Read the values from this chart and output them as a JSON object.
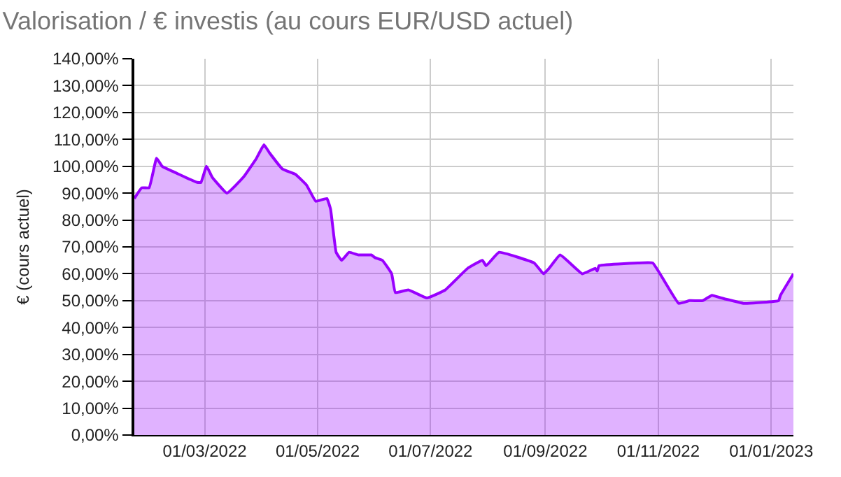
{
  "chart_data": {
    "type": "area",
    "title": "Valorisation / € investis (au cours EUR/USD actuel)",
    "ylabel": "€ (cours actuel)",
    "x": [
      "2022-01-22",
      "2022-01-26",
      "2022-01-30",
      "2022-02-03",
      "2022-02-06",
      "2022-02-12",
      "2022-02-25",
      "2022-02-27",
      "2022-03-02",
      "2022-03-05",
      "2022-03-13",
      "2022-03-22",
      "2022-03-29",
      "2022-04-02",
      "2022-04-05",
      "2022-04-12",
      "2022-04-19",
      "2022-04-25",
      "2022-04-30",
      "2022-05-06",
      "2022-05-08",
      "2022-05-11",
      "2022-05-14",
      "2022-05-18",
      "2022-05-23",
      "2022-05-30",
      "2022-06-01",
      "2022-06-05",
      "2022-06-10",
      "2022-06-12",
      "2022-06-19",
      "2022-06-29",
      "2022-07-09",
      "2022-07-15",
      "2022-07-21",
      "2022-07-29",
      "2022-07-31",
      "2022-08-07",
      "2022-08-26",
      "2022-08-31",
      "2022-09-03",
      "2022-09-09",
      "2022-09-21",
      "2022-09-28",
      "2022-09-29",
      "2022-09-30",
      "2022-10-21",
      "2022-10-29",
      "2022-11-12",
      "2022-11-18",
      "2022-11-25",
      "2022-11-30",
      "2022-12-05",
      "2022-12-17",
      "2022-12-19",
      "2023-01-05",
      "2023-01-06",
      "2023-01-13"
    ],
    "series": [
      {
        "color": "#9900ff",
        "values": [
          88,
          92,
          92,
          103,
          100,
          98,
          94,
          94,
          100,
          96,
          90,
          96,
          103,
          108,
          105,
          99,
          97,
          93,
          87,
          88,
          84,
          68,
          65,
          68,
          67,
          67,
          66,
          65,
          60,
          53,
          54,
          51,
          54,
          58,
          62,
          65,
          63,
          68,
          64,
          60,
          62,
          67,
          60,
          62,
          61,
          63,
          64,
          64,
          49,
          50,
          50,
          52,
          51,
          49,
          49,
          50,
          52,
          60
        ]
      }
    ],
    "xlim": [
      "2022-01-22",
      "2023-01-13"
    ],
    "xticks": [
      {
        "value": "2022-03-01",
        "label": "01/03/2022"
      },
      {
        "value": "2022-05-01",
        "label": "01/05/2022"
      },
      {
        "value": "2022-07-01",
        "label": "01/07/2022"
      },
      {
        "value": "2022-09-01",
        "label": "01/09/2022"
      },
      {
        "value": "2022-11-01",
        "label": "01/11/2022"
      },
      {
        "value": "2023-01-01",
        "label": "01/01/2023"
      }
    ],
    "ylim": [
      0,
      140
    ],
    "yticks": [
      {
        "value": 0,
        "label": "0,00%"
      },
      {
        "value": 10,
        "label": "10,00%"
      },
      {
        "value": 20,
        "label": "20,00%"
      },
      {
        "value": 30,
        "label": "30,00%"
      },
      {
        "value": 40,
        "label": "40,00%"
      },
      {
        "value": 50,
        "label": "50,00%"
      },
      {
        "value": 60,
        "label": "60,00%"
      },
      {
        "value": 70,
        "label": "70,00%"
      },
      {
        "value": 80,
        "label": "80,00%"
      },
      {
        "value": 90,
        "label": "90,00%"
      },
      {
        "value": 100,
        "label": "100,00%"
      },
      {
        "value": 110,
        "label": "110,00%"
      },
      {
        "value": 120,
        "label": "120,00%"
      },
      {
        "value": 130,
        "label": "130,00%"
      },
      {
        "value": 140,
        "label": "140,00%"
      }
    ],
    "grid": true,
    "marker": "none",
    "line_style": "solid"
  }
}
